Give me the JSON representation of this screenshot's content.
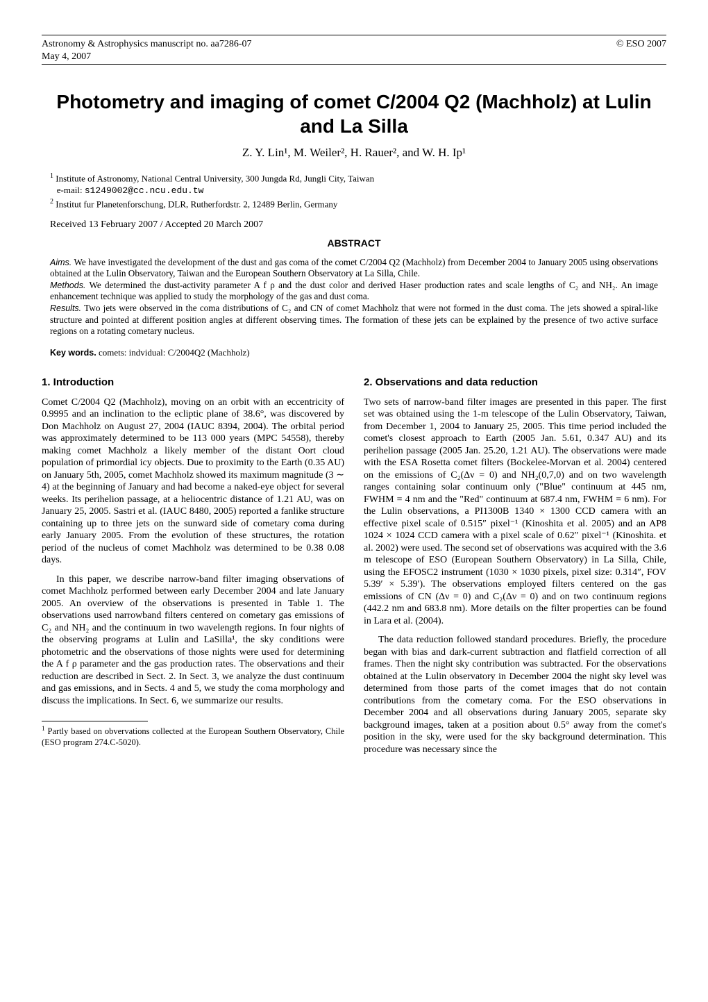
{
  "header": {
    "journal_line1": "Astronomy & Astrophysics manuscript no. aa7286-07",
    "journal_line2": "May 4, 2007",
    "copyright": "© ESO 2007"
  },
  "title": "Photometry and imaging of comet C/2004 Q2 (Machholz) at Lulin and La Silla",
  "authors": "Z. Y. Lin¹, M. Weiler², H. Rauer², and W. H. Ip¹",
  "affiliations": [
    {
      "num": "1",
      "text": "Institute of Astronomy, National Central University, 300 Jungda Rd, Jungli City, Taiwan",
      "email_label": "e-mail: ",
      "email": "s1249002@cc.ncu.edu.tw"
    },
    {
      "num": "2",
      "text": "Institut fur Planetenforschung, DLR, Rutherfordstr. 2, 12489 Berlin, Germany",
      "email_label": "",
      "email": ""
    }
  ],
  "dates": "Received 13 February 2007 / Accepted 20 March 2007",
  "abstract": {
    "label": "ABSTRACT",
    "aims_lead": "Aims.",
    "aims": " We have investigated the development of the dust and gas coma of the comet C/2004 Q2 (Machholz) from December 2004 to January 2005 using observations obtained at the Lulin Observatory, Taiwan and the European Southern Observatory at La Silla, Chile.",
    "methods_lead": "Methods.",
    "methods": " We determined the dust-activity parameter A f ρ and the dust color and derived Haser production rates and scale lengths of C₂ and NH₂. An image enhancement technique was applied to study the morphology of the gas and dust coma.",
    "results_lead": "Results.",
    "results": " Two jets were observed in the coma distributions of C₂ and CN of comet Machholz that were not formed in the dust coma. The jets showed a spiral-like structure and pointed at different position angles at different observing times. The formation of these jets can be explained by the presence of two active surface regions on a rotating cometary nucleus."
  },
  "keywords": {
    "lead": "Key words.",
    "text": " comets: indvidual: C/2004Q2 (Machholz)"
  },
  "sections": {
    "intro": {
      "heading": "1. Introduction",
      "p1": "Comet C/2004 Q2 (Machholz), moving on an orbit with an eccentricity of 0.9995 and an inclination to the ecliptic plane of 38.6°, was discovered by Don Machholz on August 27, 2004 (IAUC 8394, 2004). The orbital period was approximately determined to be 113 000 years (MPC 54558), thereby making comet Machholz a likely member of the distant Oort cloud population of primordial icy objects. Due to proximity to the Earth (0.35 AU) on January 5th, 2005, comet Machholz showed its maximum magnitude (3 ∼ 4) at the beginning of January and had become a naked-eye object for several weeks. Its perihelion passage, at a heliocentric distance of 1.21 AU, was on January 25, 2005. Sastri et al. (IAUC 8480, 2005) reported a fanlike structure containing up to three jets on the sunward side of cometary coma during early January 2005. From the evolution of these structures, the rotation period of the nucleus of comet Machholz was determined to be 0.38   0.08 days.",
      "p2": "In this paper, we describe narrow-band filter imaging observations of comet Machholz performed between early December 2004 and late January 2005. An overview of the observations is presented in Table 1. The observations used narrowband filters centered on cometary gas emissions of C₂ and NH₂ and the continuum in two wavelength regions. In four nights of the observing programs at Lulin and LaSilla¹, the sky conditions were photometric and the observations of those nights were used for determining the A f ρ parameter and the gas production rates. The observations and their reduction are described in Sect. 2. In Sect. 3, we analyze the dust continuum and gas emissions, and in Sects. 4 and 5, we study the coma morphology and discuss the implications. In Sect. 6, we summarize our results."
    },
    "obs": {
      "heading": "2. Observations and data reduction",
      "p1": "Two sets of narrow-band filter images are presented in this paper. The first set was obtained using the 1-m telescope of the Lulin Observatory, Taiwan, from December 1, 2004 to January 25, 2005. This time period included the comet's closest approach to Earth (2005 Jan. 5.61, 0.347 AU) and its perihelion passage (2005 Jan. 25.20, 1.21 AU). The observations were made with the ESA Rosetta comet filters (Bockelee-Morvan et al. 2004) centered on the emissions of C₂(Δν = 0) and NH₂(0,7,0) and on two wavelength ranges containing solar continuum only (\"Blue\" continuum at 445 nm, FWHM = 4 nm and the \"Red\" continuum at 687.4 nm, FWHM = 6 nm). For the Lulin observations, a PI1300B 1340 × 1300 CCD camera with an effective pixel scale of 0.515″ pixel⁻¹ (Kinoshita et al. 2005) and an AP8 1024 × 1024 CCD camera with a pixel scale of 0.62″ pixel⁻¹ (Kinoshita. et al. 2002) were used. The second set of observations was acquired with the 3.6 m telescope of ESO (European Southern Observatory) in La Silla, Chile, using the EFOSC2 instrument (1030 × 1030 pixels, pixel size: 0.314″, FOV 5.39′ × 5.39′). The observations employed filters centered on the gas emissions of CN (Δν = 0) and C₂(Δν = 0) and on two continuum regions (442.2 nm and 683.8 nm). More details on the filter properties can be found in Lara et al. (2004).",
      "p2": "The data reduction followed standard procedures. Briefly, the procedure began with bias and dark-current subtraction and flatfield correction of all frames. Then the night sky contribution was subtracted. For the observations obtained at the Lulin observatory in December 2004 the night sky level was determined from those parts of the comet images that do not contain contributions from the cometary coma. For the ESO observations in December 2004 and all observations during January 2005, separate sky background images, taken at a position about 0.5° away from the comet's position in the sky, were used for the sky background determination. This procedure was necessary since the"
    }
  },
  "footnote": {
    "num": "1",
    "text": " Partly based on obvervations collected at the European Southern Observatory, Chile (ESO program 274.C-5020)."
  }
}
